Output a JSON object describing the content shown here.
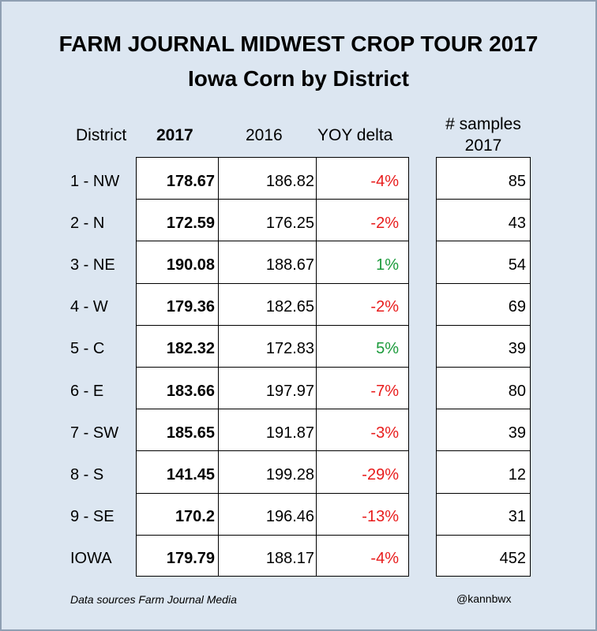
{
  "chart_data": {
    "type": "table",
    "title": "FARM JOURNAL MIDWEST CROP TOUR 2017",
    "subtitle": "Iowa Corn by District",
    "columns": {
      "district": "District",
      "y2017": "2017",
      "y2016": "2016",
      "yoy": "YOY delta",
      "samples_line1": "# samples",
      "samples_line2": "2017"
    },
    "rows": [
      {
        "district": "1 - NW",
        "y2017": "178.67",
        "y2016": "186.82",
        "yoy": "-4%",
        "samples": "85"
      },
      {
        "district": "2 - N",
        "y2017": "172.59",
        "y2016": "176.25",
        "yoy": "-2%",
        "samples": "43"
      },
      {
        "district": "3 - NE",
        "y2017": "190.08",
        "y2016": "188.67",
        "yoy": "1%",
        "samples": "54"
      },
      {
        "district": "4 - W",
        "y2017": "179.36",
        "y2016": "182.65",
        "yoy": "-2%",
        "samples": "69"
      },
      {
        "district": "5 - C",
        "y2017": "182.32",
        "y2016": "172.83",
        "yoy": "5%",
        "samples": "39"
      },
      {
        "district": "6 - E",
        "y2017": "183.66",
        "y2016": "197.97",
        "yoy": "-7%",
        "samples": "80"
      },
      {
        "district": "7 - SW",
        "y2017": "185.65",
        "y2016": "191.87",
        "yoy": "-3%",
        "samples": "39"
      },
      {
        "district": "8 - S",
        "y2017": "141.45",
        "y2016": "199.28",
        "yoy": "-29%",
        "samples": "12"
      },
      {
        "district": "9 - SE",
        "y2017": "170.2",
        "y2016": "196.46",
        "yoy": "-13%",
        "samples": "31"
      },
      {
        "district": "IOWA",
        "y2017": "179.79",
        "y2016": "188.17",
        "yoy": "-4%",
        "samples": "452"
      }
    ]
  },
  "footer": {
    "source": "Data sources Farm Journal Media",
    "handle": "@kannbwx"
  },
  "colors": {
    "background": "#dce6f1",
    "negative": "#e81c1c",
    "positive": "#1a9a3a"
  }
}
